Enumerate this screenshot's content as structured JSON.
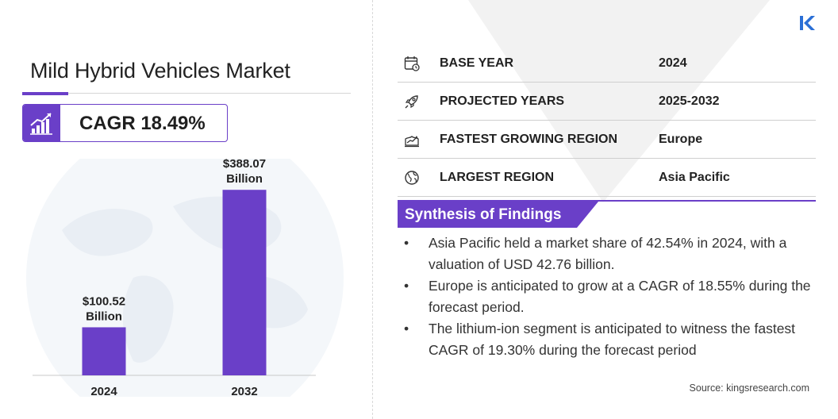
{
  "title": "Mild Hybrid Vehicles Market",
  "cagr": "CAGR 18.49%",
  "brand_logo": "K",
  "colors": {
    "accent": "#6a3fc8",
    "bar": "#6a3fc8",
    "triangle": "#f3f3f3"
  },
  "chart_data": {
    "type": "bar",
    "categories": [
      "2024",
      "2032"
    ],
    "values": [
      100.52,
      388.07
    ],
    "value_labels": [
      [
        "$100.52",
        "Billion"
      ],
      [
        "$388.07",
        "Billion"
      ]
    ],
    "title": "",
    "xlabel": "",
    "ylabel": "",
    "ylim": [
      0,
      450
    ],
    "grid": false,
    "legend": "none"
  },
  "info_rows": [
    {
      "icon": "calendar-icon",
      "label": "BASE YEAR",
      "value": "2024"
    },
    {
      "icon": "rocket-icon",
      "label": "PROJECTED YEARS",
      "value": "2025-2032"
    },
    {
      "icon": "region-growth-icon",
      "label": "FASTEST GROWING REGION",
      "value": "Europe"
    },
    {
      "icon": "globe-icon",
      "label": "LARGEST REGION",
      "value": "Asia Pacific"
    }
  ],
  "synthesis": {
    "title": "Synthesis of Findings",
    "bullet": "•",
    "items": [
      "Asia Pacific held a market share of 42.54% in 2024, with a valuation of USD 42.76 billion.",
      "Europe is anticipated to grow at a CAGR of 18.55% during the forecast period.",
      "The lithium-ion segment is anticipated to witness the fastest CAGR of 19.30% during the forecast period"
    ]
  },
  "source": "Source:  kingsresearch.com"
}
